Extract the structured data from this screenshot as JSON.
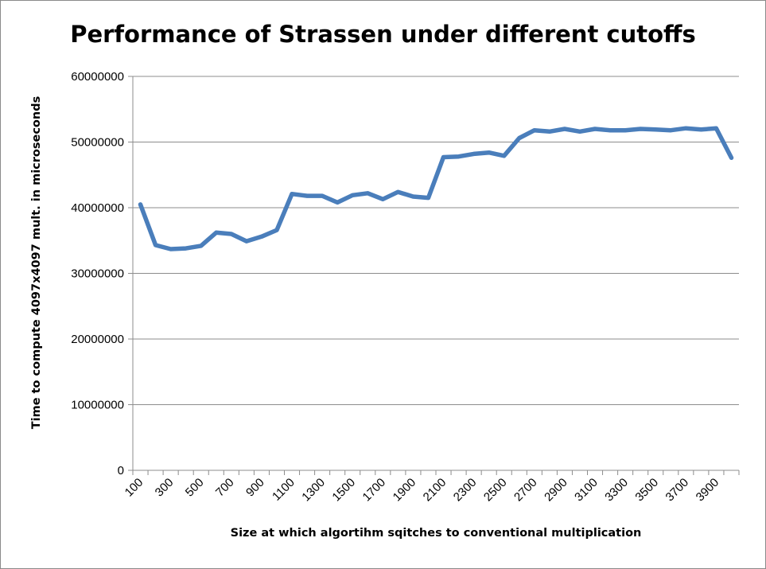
{
  "chart_data": {
    "type": "line",
    "title": "Performance of Strassen under different cutoffs",
    "xlabel": "Size at which algortihm sqitches to conventional multiplication",
    "ylabel": "Time to compute 4097x4097 mult. in microseconds",
    "ylim": [
      0,
      60000000
    ],
    "yticks": [
      "0",
      "10000000",
      "20000000",
      "30000000",
      "40000000",
      "50000000",
      "60000000"
    ],
    "ytick_values": [
      0,
      10000000,
      20000000,
      30000000,
      40000000,
      50000000,
      60000000
    ],
    "xtick_labels": [
      "100",
      "300",
      "500",
      "700",
      "900",
      "1100",
      "1300",
      "1500",
      "1700",
      "1900",
      "2100",
      "2300",
      "2500",
      "2700",
      "2900",
      "3100",
      "3300",
      "3500",
      "3700",
      "3900"
    ],
    "grid": true,
    "line_color": "#4a7ebb",
    "x": [
      100,
      200,
      300,
      400,
      500,
      600,
      700,
      800,
      900,
      1000,
      1100,
      1200,
      1300,
      1400,
      1500,
      1600,
      1700,
      1800,
      1900,
      2000,
      2100,
      2200,
      2300,
      2400,
      2500,
      2600,
      2700,
      2800,
      2900,
      3000,
      3100,
      3200,
      3300,
      3400,
      3500,
      3600,
      3700,
      3800,
      3900,
      4000
    ],
    "series": [
      {
        "values": [
          40500000,
          34300000,
          33700000,
          33800000,
          34200000,
          36200000,
          36000000,
          34900000,
          35600000,
          36600000,
          42100000,
          41800000,
          41800000,
          40800000,
          41900000,
          42200000,
          41300000,
          42400000,
          41700000,
          41500000,
          47700000,
          47800000,
          48200000,
          48400000,
          47900000,
          50600000,
          51800000,
          51600000,
          52000000,
          51600000,
          52000000,
          51800000,
          51800000,
          52000000,
          51900000,
          51800000,
          52100000,
          51900000,
          52100000,
          47600000
        ]
      }
    ]
  }
}
